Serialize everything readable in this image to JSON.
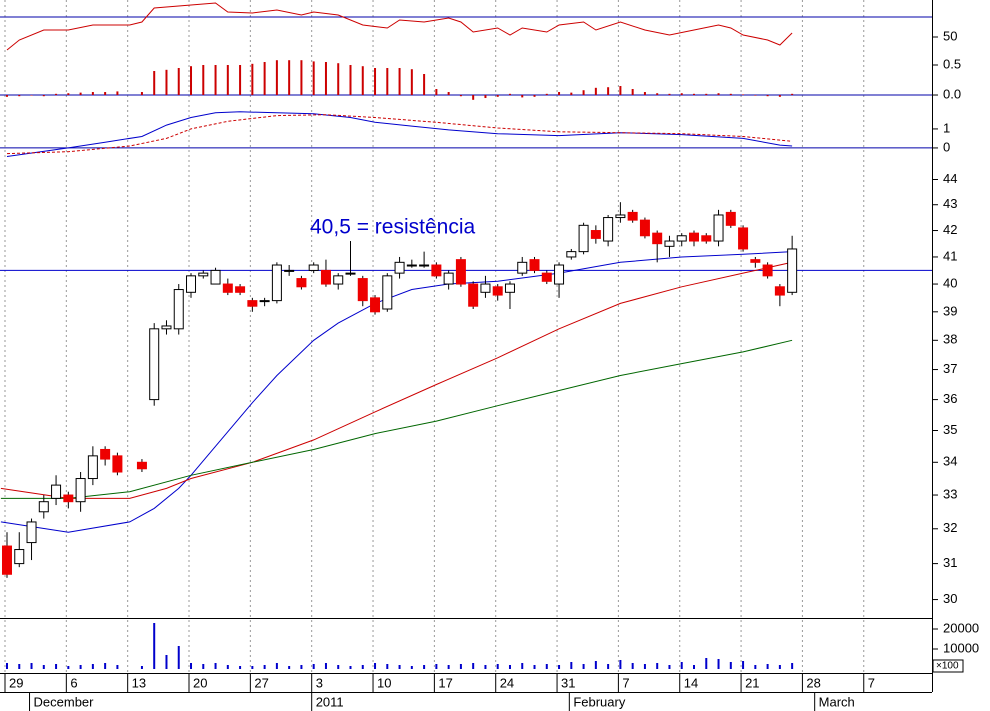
{
  "chart_data": [
    {
      "type": "combo",
      "ylim": [
        -10,
        87
      ],
      "yticks": [
        50
      ],
      "hline": 70,
      "hline_color": "#0000aa",
      "y2lim": [
        -0.033,
        1.583
      ],
      "y2ticks": [
        0.5,
        {
          "value": 0,
          "label": "0.0"
        }
      ],
      "zero_line_color": "#0000aa",
      "series": [
        {
          "type": "line",
          "color": "#cc0000",
          "x": [
            0,
            1,
            3,
            5,
            7,
            10,
            11,
            12,
            15,
            17,
            18,
            20,
            22,
            24,
            25,
            27,
            29,
            31,
            32,
            34,
            36,
            37,
            38,
            40,
            41,
            42,
            44,
            45,
            47,
            48,
            50,
            52,
            54,
            56,
            58,
            59,
            60,
            62,
            63,
            64
          ],
          "values": [
            37,
            47,
            57,
            57,
            62,
            62,
            65,
            79,
            82,
            84,
            75,
            74,
            77,
            72,
            75,
            72,
            62,
            59,
            67,
            65,
            69,
            65,
            55,
            59,
            52,
            59,
            55,
            62,
            65,
            57,
            65,
            57,
            52,
            57,
            62,
            59,
            52,
            47,
            42,
            54
          ]
        },
        {
          "type": "bar",
          "axis": "y2",
          "color": "#cc0000",
          "values": [
            -0.03,
            -0.02,
            0,
            -0.02,
            0.02,
            0.03,
            0.04,
            0.05,
            0.05,
            0.06,
            null,
            0.05,
            0.4,
            0.42,
            0.45,
            0.48,
            0.5,
            0.5,
            0.5,
            0.5,
            0.52,
            0.55,
            0.58,
            0.58,
            0.58,
            0.56,
            0.55,
            0.53,
            0.5,
            0.48,
            0.45,
            0.45,
            0.45,
            0.43,
            0.35,
            0.1,
            0.05,
            -0.02,
            -0.08,
            -0.05,
            -0.03,
            0.02,
            -0.04,
            -0.03,
            0.02,
            0.05,
            0.04,
            0.08,
            0.12,
            0.13,
            0.15,
            0.1,
            0.05,
            0.03,
            0.02,
            0.03,
            0.02,
            0.02,
            0.03,
            0.02,
            0.01,
            -0.01,
            -0.02,
            -0.03,
            0.02
          ]
        }
      ]
    },
    {
      "type": "line",
      "ylim": [
        -0.74,
        2.68
      ],
      "yticks": [
        1,
        0
      ],
      "zero_line_color": "#0000aa",
      "series": [
        {
          "color": "#0000cc",
          "x": [
            0,
            5,
            8,
            11,
            13,
            15,
            17,
            19,
            22,
            25,
            28,
            30,
            33,
            36,
            40,
            45,
            50,
            55,
            60,
            63,
            64
          ],
          "values": [
            -0.45,
            0,
            0.3,
            0.6,
            1.2,
            1.6,
            1.85,
            1.9,
            1.85,
            1.8,
            1.6,
            1.35,
            1.15,
            0.95,
            0.75,
            0.65,
            0.8,
            0.7,
            0.5,
            0.15,
            0.1
          ]
        },
        {
          "color": "#cc0000",
          "dash": true,
          "x": [
            0,
            5,
            10,
            13,
            15,
            18,
            22,
            26,
            30,
            35,
            40,
            45,
            50,
            55,
            60,
            64
          ],
          "values": [
            -0.3,
            -0.2,
            0.1,
            0.5,
            1.0,
            1.4,
            1.7,
            1.75,
            1.6,
            1.35,
            1.05,
            0.85,
            0.8,
            0.75,
            0.6,
            0.35
          ]
        }
      ]
    },
    {
      "type": "candlestick",
      "log_scale": true,
      "ylim": [
        29.5,
        45.2
      ],
      "yticks": [
        30,
        31,
        32,
        33,
        34,
        35,
        36,
        37,
        38,
        39,
        40,
        41,
        42,
        43,
        44
      ],
      "up_color": "#ffffff",
      "down_color": "#ee0000",
      "open": [
        31.5,
        31.0,
        31.6,
        32.5,
        32.9,
        33.0,
        32.8,
        33.5,
        34.4,
        34.2,
        null,
        34.0,
        36.0,
        38.4,
        38.4,
        39.7,
        40.3,
        40.0,
        40.0,
        39.9,
        39.4,
        39.4,
        39.4,
        40.5,
        40.2,
        40.5,
        40.5,
        40.0,
        40.4,
        40.2,
        39.5,
        39.1,
        40.4,
        40.7,
        40.7,
        40.7,
        40.0,
        40.9,
        40.0,
        39.7,
        39.9,
        39.7,
        40.4,
        40.9,
        40.4,
        40.0,
        41.0,
        41.2,
        42.0,
        41.6,
        42.5,
        42.7,
        42.4,
        41.9,
        41.4,
        41.6,
        41.9,
        41.8,
        41.6,
        42.7,
        42.1,
        40.9,
        40.7,
        39.9,
        39.7
      ],
      "high": [
        31.9,
        31.9,
        32.3,
        33.0,
        33.6,
        33.1,
        33.7,
        34.5,
        34.5,
        34.3,
        null,
        34.1,
        38.6,
        38.7,
        40.0,
        40.4,
        40.5,
        40.6,
        40.2,
        40.0,
        39.5,
        39.5,
        40.8,
        40.7,
        40.3,
        40.8,
        40.9,
        40.4,
        41.6,
        40.3,
        39.6,
        40.4,
        41.0,
        40.9,
        41.2,
        40.8,
        40.5,
        41.0,
        40.1,
        40.3,
        40.0,
        40.1,
        41.0,
        41.0,
        40.5,
        40.8,
        41.3,
        42.3,
        42.2,
        42.6,
        43.1,
        42.8,
        42.5,
        42.0,
        41.8,
        41.9,
        42.0,
        41.9,
        42.8,
        42.8,
        42.2,
        41.0,
        40.8,
        40.0,
        41.8
      ],
      "low": [
        30.6,
        30.9,
        31.1,
        32.3,
        32.7,
        32.6,
        32.5,
        33.3,
        33.9,
        33.6,
        null,
        33.7,
        35.8,
        38.2,
        38.2,
        39.5,
        40.2,
        40.0,
        39.6,
        39.6,
        39.0,
        39.2,
        39.3,
        40.3,
        39.8,
        40.4,
        39.9,
        39.8,
        40.3,
        39.2,
        38.9,
        39.0,
        40.2,
        40.6,
        40.6,
        40.2,
        39.8,
        39.9,
        39.1,
        39.5,
        39.4,
        39.1,
        40.3,
        40.4,
        40.0,
        39.5,
        40.9,
        41.1,
        41.5,
        41.4,
        42.3,
        42.3,
        41.7,
        40.8,
        41.0,
        41.4,
        41.4,
        41.5,
        41.4,
        42.1,
        41.2,
        40.6,
        40.2,
        39.2,
        39.6
      ],
      "close": [
        30.7,
        31.4,
        32.2,
        32.8,
        33.3,
        32.8,
        33.5,
        34.2,
        34.1,
        33.7,
        null,
        33.8,
        38.4,
        38.5,
        39.8,
        40.3,
        40.4,
        40.5,
        39.7,
        39.7,
        39.2,
        39.4,
        40.7,
        40.5,
        39.9,
        40.7,
        40.0,
        40.3,
        40.4,
        39.4,
        39.0,
        40.3,
        40.8,
        40.7,
        40.7,
        40.3,
        40.4,
        40.0,
        39.2,
        40.0,
        39.6,
        40.0,
        40.8,
        40.5,
        40.1,
        40.7,
        41.2,
        42.2,
        41.7,
        42.5,
        42.6,
        42.4,
        41.8,
        41.5,
        41.6,
        41.8,
        41.6,
        41.6,
        42.6,
        42.2,
        41.3,
        40.8,
        40.3,
        39.6,
        41.3
      ],
      "series": [
        {
          "color": "#0000cc",
          "x": [
            -0.5,
            5,
            10,
            12,
            14,
            15,
            17,
            20,
            22,
            25,
            27,
            30,
            33,
            36,
            40,
            45,
            50,
            55,
            60,
            64
          ],
          "values": [
            32.2,
            31.9,
            32.2,
            32.6,
            33.2,
            33.6,
            34.5,
            35.9,
            36.8,
            38.0,
            38.6,
            39.3,
            39.8,
            40.0,
            40.1,
            40.4,
            40.8,
            41.0,
            41.1,
            41.2
          ]
        },
        {
          "color": "#cc0000",
          "x": [
            -0.5,
            5,
            10,
            13,
            15,
            20,
            25,
            30,
            35,
            40,
            45,
            50,
            55,
            60,
            64
          ],
          "values": [
            33.2,
            32.9,
            32.9,
            33.2,
            33.5,
            34.0,
            34.7,
            35.6,
            36.5,
            37.4,
            38.4,
            39.3,
            39.9,
            40.4,
            40.8
          ]
        },
        {
          "color": "#006600",
          "x": [
            -0.5,
            5,
            10,
            15,
            20,
            25,
            30,
            35,
            40,
            45,
            50,
            55,
            60,
            64
          ],
          "values": [
            32.9,
            32.9,
            33.1,
            33.6,
            34.0,
            34.4,
            34.9,
            35.3,
            35.8,
            36.3,
            36.8,
            37.2,
            37.6,
            38.0
          ]
        }
      ],
      "hline": 40.5,
      "hline_color": "#0000cc",
      "annotation": "40,5 = resistência"
    },
    {
      "type": "bar",
      "color": "#0000cc",
      "ylim": [
        -2000,
        24500
      ],
      "yticks": [
        20000,
        10000
      ],
      "unit_label": "×100",
      "values": [
        3000,
        2500,
        3000,
        2000,
        2500,
        1500,
        2000,
        2500,
        3000,
        2000,
        null,
        1500,
        23000,
        7000,
        11500,
        3000,
        2500,
        3000,
        2000,
        1500,
        1500,
        2000,
        3000,
        1500,
        2000,
        2500,
        3000,
        2000,
        1500,
        2000,
        3000,
        2500,
        2000,
        1500,
        2000,
        2500,
        2000,
        2500,
        3000,
        2000,
        2500,
        2000,
        3000,
        2000,
        2500,
        2000,
        3500,
        2500,
        4000,
        2500,
        4500,
        3000,
        2500,
        3000,
        2000,
        3500,
        2000,
        5500,
        5000,
        3500,
        4000,
        2000,
        2500,
        2000,
        3000
      ],
      "xlim": [
        -0.57,
        75.4
      ],
      "xticks": [
        {
          "value": 0,
          "label": "29"
        },
        {
          "value": 5,
          "label": "6"
        },
        {
          "value": 10,
          "label": "13"
        },
        {
          "value": 15,
          "label": "20"
        },
        {
          "value": 20,
          "label": "27"
        },
        {
          "value": 25,
          "label": "3"
        },
        {
          "value": 30,
          "label": "10"
        },
        {
          "value": 35,
          "label": "17"
        },
        {
          "value": 40,
          "label": "24"
        },
        {
          "value": 45,
          "label": "31"
        },
        {
          "value": 50,
          "label": "7"
        },
        {
          "value": 55,
          "label": "14"
        },
        {
          "value": 60,
          "label": "21"
        },
        {
          "value": 65,
          "label": "28"
        },
        {
          "value": 70,
          "label": "7"
        }
      ],
      "months": [
        {
          "value": 2,
          "label": "December"
        },
        {
          "value": 25,
          "label": "2011"
        },
        {
          "value": 46,
          "label": "February"
        },
        {
          "value": 66,
          "label": "March"
        }
      ]
    }
  ]
}
